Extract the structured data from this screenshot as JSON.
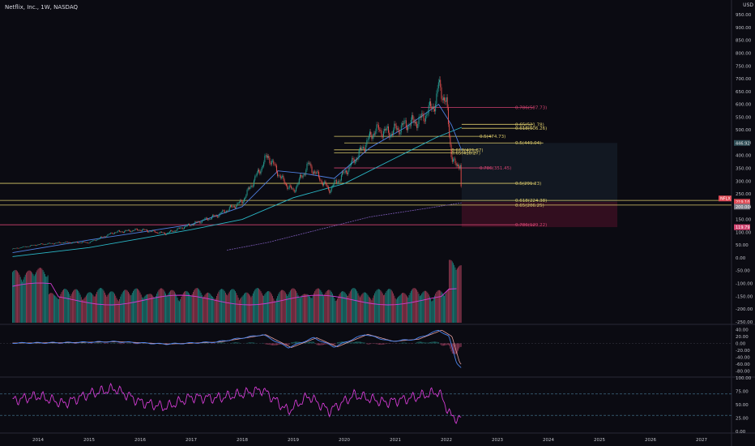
{
  "header": {
    "title": "Netflix, Inc., 1W, NASDAQ",
    "currency": "USD"
  },
  "colors": {
    "background": "#0b0b12",
    "fib_yellow": "#d9c86a",
    "fib_pink": "#d1426f",
    "ma_cyan": "#2ab7c6",
    "ma_blue": "#4f7fe0",
    "ma_purple": "#7a5ab5",
    "rsi": "#d23bd2",
    "macd": "#4c86f0",
    "signal": "#e5a0a0",
    "current_badge": "#e04a55"
  },
  "chart_data": {
    "type": "line",
    "title": "Netflix, Inc., 1W, NASDAQ",
    "x_ticks": [
      "2014",
      "2015",
      "2016",
      "2017",
      "2018",
      "2019",
      "2020",
      "2021",
      "2022",
      "2023",
      "2024",
      "2025",
      "2026",
      "2027"
    ],
    "price": {
      "axis_ticks": [
        "950.00",
        "900.00",
        "850.00",
        "800.00",
        "750.00",
        "700.00",
        "650.00",
        "600.00",
        "550.00",
        "500.00",
        "450.00",
        "400.00",
        "350.00",
        "300.00",
        "250.00",
        "200.00",
        "150.00",
        "100.00",
        "50.00",
        "0.00",
        "-50.00",
        "-100.00",
        "-150.00",
        "-200.00",
        "-250.00"
      ],
      "ylim": [
        -260,
        960
      ],
      "close_series": [
        [
          2013.5,
          35
        ],
        [
          2014.0,
          52
        ],
        [
          2014.5,
          60
        ],
        [
          2015.0,
          60
        ],
        [
          2015.5,
          100
        ],
        [
          2016.0,
          110
        ],
        [
          2016.5,
          95
        ],
        [
          2017.0,
          130
        ],
        [
          2017.5,
          165
        ],
        [
          2018.0,
          220
        ],
        [
          2018.5,
          400
        ],
        [
          2018.8,
          300
        ],
        [
          2019.0,
          260
        ],
        [
          2019.3,
          365
        ],
        [
          2019.7,
          265
        ],
        [
          2020.0,
          330
        ],
        [
          2020.3,
          410
        ],
        [
          2020.6,
          500
        ],
        [
          2020.9,
          490
        ],
        [
          2021.2,
          520
        ],
        [
          2021.5,
          540
        ],
        [
          2021.8,
          610
        ],
        [
          2021.85,
          680
        ],
        [
          2022.0,
          600
        ],
        [
          2022.1,
          400
        ],
        [
          2022.2,
          350
        ],
        [
          2022.27,
          375
        ],
        [
          2022.3,
          219
        ]
      ],
      "current_price_badges": [
        "NFLX",
        "219.10",
        "2:50:31",
        "200.00",
        "119.79"
      ],
      "price_badge_right": "446.92"
    },
    "fib_levels": [
      {
        "label": "0.786(587.73)",
        "price": 587.73,
        "color": "pink"
      },
      {
        "label": "0.65(521.78)",
        "price": 521.78,
        "color": "yellow"
      },
      {
        "label": "0.618(506.26)",
        "price": 506.26,
        "color": "yellow"
      },
      {
        "label": "0.5(474.73)",
        "price": 474.73,
        "color": "yellow"
      },
      {
        "label": "0.5(449.04)",
        "price": 449.04,
        "color": "yellow"
      },
      {
        "label": "0.618(421.87)",
        "price": 421.87,
        "color": "yellow"
      },
      {
        "label": "0.65(410.27)",
        "price": 410.27,
        "color": "yellow"
      },
      {
        "label": "0.786(351.45)",
        "price": 351.45,
        "color": "pink"
      },
      {
        "label": "0.5(291.23)",
        "price": 291.23,
        "color": "yellow"
      },
      {
        "label": "0.618(224.38)",
        "price": 224.38,
        "color": "yellow"
      },
      {
        "label": "0.65(206.25)",
        "price": 206.25,
        "color": "yellow"
      },
      {
        "label": "0.786(129.22)",
        "price": 129.22,
        "color": "pink"
      }
    ],
    "macd": {
      "axis_ticks": [
        "40.00",
        "20.00",
        "0.00",
        "-20.00",
        "-40.00",
        "-60.00",
        "-80.00"
      ],
      "ylim": [
        -90,
        50
      ],
      "series": [
        [
          2013.5,
          1
        ],
        [
          2014.5,
          2
        ],
        [
          2015.5,
          5
        ],
        [
          2016.5,
          -2
        ],
        [
          2017.5,
          4
        ],
        [
          2018.4,
          25
        ],
        [
          2018.9,
          -12
        ],
        [
          2019.4,
          16
        ],
        [
          2019.8,
          -10
        ],
        [
          2020.4,
          26
        ],
        [
          2020.9,
          6
        ],
        [
          2021.4,
          12
        ],
        [
          2021.85,
          38
        ],
        [
          2022.05,
          20
        ],
        [
          2022.2,
          -55
        ],
        [
          2022.3,
          -72
        ]
      ]
    },
    "rsi": {
      "axis_ticks": [
        "100.00",
        "75.00",
        "50.00",
        "25.00",
        "0.00"
      ],
      "ylim": [
        0,
        100
      ],
      "bands": [
        70,
        30
      ],
      "series": [
        [
          2013.5,
          58
        ],
        [
          2014.0,
          66
        ],
        [
          2014.5,
          52
        ],
        [
          2015.0,
          70
        ],
        [
          2015.5,
          80
        ],
        [
          2016.0,
          55
        ],
        [
          2016.5,
          45
        ],
        [
          2017.0,
          64
        ],
        [
          2017.5,
          62
        ],
        [
          2018.0,
          70
        ],
        [
          2018.4,
          78
        ],
        [
          2018.9,
          38
        ],
        [
          2019.3,
          66
        ],
        [
          2019.7,
          38
        ],
        [
          2020.2,
          68
        ],
        [
          2020.8,
          54
        ],
        [
          2021.3,
          62
        ],
        [
          2021.85,
          74
        ],
        [
          2022.1,
          27
        ],
        [
          2022.3,
          23
        ]
      ]
    }
  }
}
